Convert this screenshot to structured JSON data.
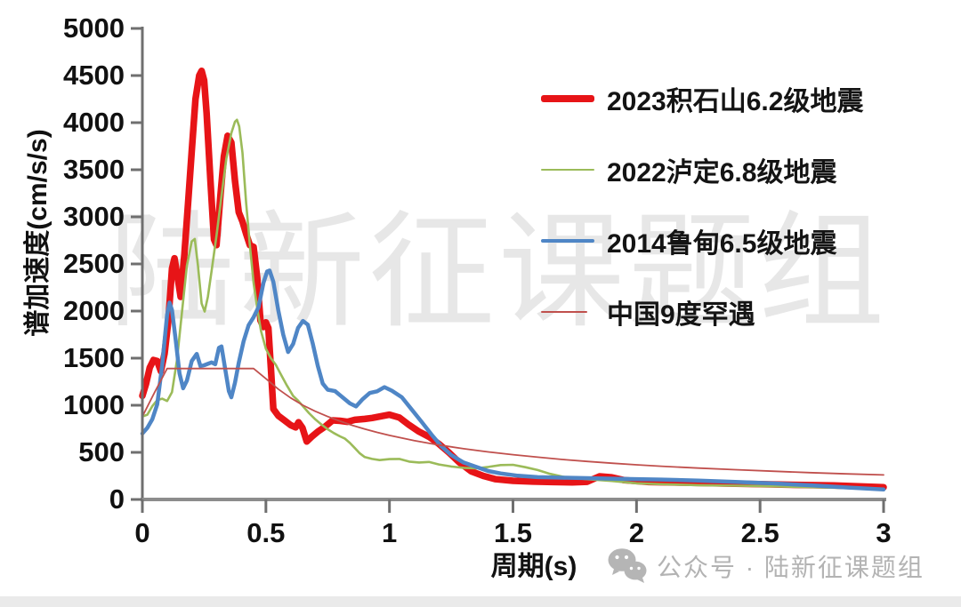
{
  "watermark": {
    "text": "陆新征课题组"
  },
  "footer": {
    "icon": "wechat-icon",
    "text": "公众号 · 陆新征课题组"
  },
  "colors": {
    "axis": "#6f6f6f",
    "x_axis_line": "#8c8c8c",
    "tick_label": "#111111",
    "footer_gray": "#b3b3b3"
  },
  "chart_data": {
    "type": "line",
    "title": "",
    "xlabel": "周期(s)",
    "ylabel": "谱加速度(cm/s/s)",
    "xlim": [
      0,
      3
    ],
    "ylim": [
      0,
      5000
    ],
    "grid": false,
    "legend_position": "inside-top-right",
    "x_ticks": [
      0,
      0.5,
      1,
      1.5,
      2,
      2.5,
      3
    ],
    "x_tick_labels": [
      "0",
      "0.5",
      "1",
      "1.5",
      "2",
      "2.5",
      "3"
    ],
    "y_ticks": [
      0,
      500,
      1000,
      1500,
      2000,
      2500,
      3000,
      3500,
      4000,
      4500,
      5000
    ],
    "y_tick_labels": [
      "0",
      "500",
      "1000",
      "1500",
      "2000",
      "2500",
      "3000",
      "3500",
      "4000",
      "4500",
      "5000"
    ],
    "series": [
      {
        "name": "2023积石山6.2级地震",
        "color": "#e71417",
        "width": 7.5,
        "points": [
          [
            0,
            1100
          ],
          [
            0.015,
            1230
          ],
          [
            0.03,
            1400
          ],
          [
            0.045,
            1480
          ],
          [
            0.06,
            1470
          ],
          [
            0.075,
            1360
          ],
          [
            0.09,
            1550
          ],
          [
            0.105,
            1900
          ],
          [
            0.12,
            2450
          ],
          [
            0.13,
            2560
          ],
          [
            0.14,
            2400
          ],
          [
            0.155,
            2150
          ],
          [
            0.17,
            2600
          ],
          [
            0.185,
            3150
          ],
          [
            0.2,
            3700
          ],
          [
            0.215,
            4250
          ],
          [
            0.23,
            4500
          ],
          [
            0.24,
            4550
          ],
          [
            0.25,
            4450
          ],
          [
            0.26,
            4100
          ],
          [
            0.275,
            3400
          ],
          [
            0.29,
            2760
          ],
          [
            0.3,
            2700
          ],
          [
            0.315,
            3200
          ],
          [
            0.33,
            3640
          ],
          [
            0.345,
            3860
          ],
          [
            0.36,
            3790
          ],
          [
            0.375,
            3380
          ],
          [
            0.39,
            3050
          ],
          [
            0.405,
            2950
          ],
          [
            0.42,
            2820
          ],
          [
            0.435,
            2700
          ],
          [
            0.45,
            2680
          ],
          [
            0.465,
            2350
          ],
          [
            0.478,
            1900
          ],
          [
            0.49,
            1830
          ],
          [
            0.5,
            1880
          ],
          [
            0.51,
            1820
          ],
          [
            0.52,
            1400
          ],
          [
            0.53,
            960
          ],
          [
            0.55,
            890
          ],
          [
            0.575,
            840
          ],
          [
            0.6,
            790
          ],
          [
            0.62,
            765
          ],
          [
            0.632,
            820
          ],
          [
            0.648,
            760
          ],
          [
            0.665,
            615
          ],
          [
            0.685,
            665
          ],
          [
            0.71,
            720
          ],
          [
            0.74,
            775
          ],
          [
            0.77,
            840
          ],
          [
            0.8,
            835
          ],
          [
            0.83,
            825
          ],
          [
            0.86,
            845
          ],
          [
            0.9,
            855
          ],
          [
            0.93,
            865
          ],
          [
            0.96,
            880
          ],
          [
            1.0,
            900
          ],
          [
            1.04,
            870
          ],
          [
            1.08,
            790
          ],
          [
            1.12,
            720
          ],
          [
            1.16,
            665
          ],
          [
            1.2,
            590
          ],
          [
            1.24,
            500
          ],
          [
            1.28,
            400
          ],
          [
            1.33,
            300
          ],
          [
            1.38,
            250
          ],
          [
            1.43,
            215
          ],
          [
            1.5,
            198
          ],
          [
            1.58,
            190
          ],
          [
            1.66,
            185
          ],
          [
            1.74,
            182
          ],
          [
            1.8,
            188
          ],
          [
            1.85,
            245
          ],
          [
            1.9,
            235
          ],
          [
            1.95,
            205
          ],
          [
            2.05,
            185
          ],
          [
            2.2,
            178
          ],
          [
            2.35,
            170
          ],
          [
            2.5,
            162
          ],
          [
            2.65,
            155
          ],
          [
            2.8,
            148
          ],
          [
            2.9,
            140
          ],
          [
            3.0,
            130
          ]
        ]
      },
      {
        "name": "2022泸定6.8级地震",
        "color": "#9bbb59",
        "width": 2.6,
        "points": [
          [
            0,
            880
          ],
          [
            0.02,
            900
          ],
          [
            0.04,
            990
          ],
          [
            0.06,
            1055
          ],
          [
            0.08,
            1070
          ],
          [
            0.1,
            1045
          ],
          [
            0.12,
            1140
          ],
          [
            0.14,
            1480
          ],
          [
            0.16,
            1980
          ],
          [
            0.18,
            2480
          ],
          [
            0.2,
            2740
          ],
          [
            0.212,
            2765
          ],
          [
            0.225,
            2480
          ],
          [
            0.24,
            2080
          ],
          [
            0.252,
            1995
          ],
          [
            0.265,
            2150
          ],
          [
            0.28,
            2420
          ],
          [
            0.3,
            2800
          ],
          [
            0.32,
            3220
          ],
          [
            0.34,
            3620
          ],
          [
            0.36,
            3890
          ],
          [
            0.375,
            4010
          ],
          [
            0.383,
            4030
          ],
          [
            0.392,
            3960
          ],
          [
            0.405,
            3680
          ],
          [
            0.42,
            3150
          ],
          [
            0.435,
            2700
          ],
          [
            0.45,
            2300
          ],
          [
            0.465,
            2030
          ],
          [
            0.48,
            1790
          ],
          [
            0.5,
            1600
          ],
          [
            0.52,
            1500
          ],
          [
            0.54,
            1430
          ],
          [
            0.56,
            1330
          ],
          [
            0.585,
            1210
          ],
          [
            0.61,
            1100
          ],
          [
            0.63,
            1050
          ],
          [
            0.65,
            990
          ],
          [
            0.675,
            915
          ],
          [
            0.7,
            850
          ],
          [
            0.725,
            795
          ],
          [
            0.75,
            745
          ],
          [
            0.775,
            705
          ],
          [
            0.8,
            670
          ],
          [
            0.82,
            645
          ],
          [
            0.84,
            600
          ],
          [
            0.86,
            545
          ],
          [
            0.88,
            490
          ],
          [
            0.9,
            450
          ],
          [
            0.93,
            430
          ],
          [
            0.96,
            418
          ],
          [
            1.0,
            428
          ],
          [
            1.04,
            430
          ],
          [
            1.08,
            402
          ],
          [
            1.12,
            392
          ],
          [
            1.16,
            398
          ],
          [
            1.2,
            372
          ],
          [
            1.25,
            350
          ],
          [
            1.3,
            336
          ],
          [
            1.35,
            330
          ],
          [
            1.4,
            345
          ],
          [
            1.45,
            365
          ],
          [
            1.5,
            368
          ],
          [
            1.55,
            342
          ],
          [
            1.6,
            312
          ],
          [
            1.65,
            272
          ],
          [
            1.7,
            242
          ],
          [
            1.75,
            226
          ],
          [
            1.8,
            215
          ],
          [
            1.9,
            196
          ],
          [
            2.0,
            172
          ],
          [
            2.1,
            162
          ],
          [
            2.25,
            152
          ],
          [
            2.4,
            146
          ],
          [
            2.55,
            140
          ],
          [
            2.7,
            131
          ],
          [
            2.85,
            121
          ],
          [
            3.0,
            112
          ]
        ]
      },
      {
        "name": "2014鲁甸6.5级地震",
        "color": "#4f86c6",
        "width": 4.5,
        "points": [
          [
            0,
            700
          ],
          [
            0.02,
            760
          ],
          [
            0.04,
            850
          ],
          [
            0.06,
            1010
          ],
          [
            0.08,
            1420
          ],
          [
            0.1,
            1960
          ],
          [
            0.11,
            2090
          ],
          [
            0.12,
            2010
          ],
          [
            0.135,
            1690
          ],
          [
            0.15,
            1340
          ],
          [
            0.165,
            1180
          ],
          [
            0.18,
            1260
          ],
          [
            0.2,
            1470
          ],
          [
            0.22,
            1545
          ],
          [
            0.235,
            1415
          ],
          [
            0.25,
            1425
          ],
          [
            0.265,
            1440
          ],
          [
            0.28,
            1455
          ],
          [
            0.295,
            1435
          ],
          [
            0.31,
            1610
          ],
          [
            0.32,
            1625
          ],
          [
            0.335,
            1390
          ],
          [
            0.35,
            1150
          ],
          [
            0.36,
            1085
          ],
          [
            0.375,
            1240
          ],
          [
            0.39,
            1450
          ],
          [
            0.41,
            1680
          ],
          [
            0.43,
            1850
          ],
          [
            0.45,
            1935
          ],
          [
            0.47,
            2040
          ],
          [
            0.49,
            2300
          ],
          [
            0.505,
            2420
          ],
          [
            0.515,
            2430
          ],
          [
            0.53,
            2310
          ],
          [
            0.55,
            2010
          ],
          [
            0.57,
            1750
          ],
          [
            0.59,
            1565
          ],
          [
            0.61,
            1650
          ],
          [
            0.63,
            1820
          ],
          [
            0.65,
            1895
          ],
          [
            0.67,
            1855
          ],
          [
            0.69,
            1650
          ],
          [
            0.71,
            1420
          ],
          [
            0.73,
            1230
          ],
          [
            0.75,
            1165
          ],
          [
            0.78,
            1150
          ],
          [
            0.81,
            1085
          ],
          [
            0.84,
            1020
          ],
          [
            0.865,
            988
          ],
          [
            0.89,
            1060
          ],
          [
            0.92,
            1130
          ],
          [
            0.95,
            1148
          ],
          [
            0.98,
            1192
          ],
          [
            1.01,
            1155
          ],
          [
            1.05,
            1085
          ],
          [
            1.09,
            955
          ],
          [
            1.13,
            825
          ],
          [
            1.17,
            690
          ],
          [
            1.21,
            565
          ],
          [
            1.25,
            472
          ],
          [
            1.3,
            392
          ],
          [
            1.35,
            346
          ],
          [
            1.4,
            302
          ],
          [
            1.45,
            276
          ],
          [
            1.52,
            252
          ],
          [
            1.6,
            237
          ],
          [
            1.7,
            231
          ],
          [
            1.8,
            226
          ],
          [
            1.9,
            221
          ],
          [
            2.0,
            216
          ],
          [
            2.1,
            211
          ],
          [
            2.25,
            201
          ],
          [
            2.4,
            186
          ],
          [
            2.55,
            171
          ],
          [
            2.7,
            151
          ],
          [
            2.85,
            127
          ],
          [
            3.0,
            106
          ]
        ]
      },
      {
        "name": "中国9度罕遇",
        "color": "#c0504d",
        "width": 1.8,
        "points": [
          [
            0,
            880
          ],
          [
            0.05,
            1140
          ],
          [
            0.1,
            1390
          ],
          [
            0.45,
            1390
          ],
          [
            0.5,
            1282
          ],
          [
            0.55,
            1172
          ],
          [
            0.6,
            1078
          ],
          [
            0.65,
            1000
          ],
          [
            0.7,
            936
          ],
          [
            0.75,
            880
          ],
          [
            0.8,
            831
          ],
          [
            0.85,
            787
          ],
          [
            0.9,
            748
          ],
          [
            0.95,
            712
          ],
          [
            1.0,
            680
          ],
          [
            1.1,
            625
          ],
          [
            1.2,
            578
          ],
          [
            1.3,
            539
          ],
          [
            1.4,
            505
          ],
          [
            1.5,
            475
          ],
          [
            1.6,
            449
          ],
          [
            1.7,
            425
          ],
          [
            1.8,
            404
          ],
          [
            1.9,
            385
          ],
          [
            2.0,
            368
          ],
          [
            2.1,
            353
          ],
          [
            2.25,
            333
          ],
          [
            2.4,
            316
          ],
          [
            2.55,
            300
          ],
          [
            2.7,
            285
          ],
          [
            2.85,
            272
          ],
          [
            3.0,
            260
          ]
        ]
      }
    ]
  }
}
